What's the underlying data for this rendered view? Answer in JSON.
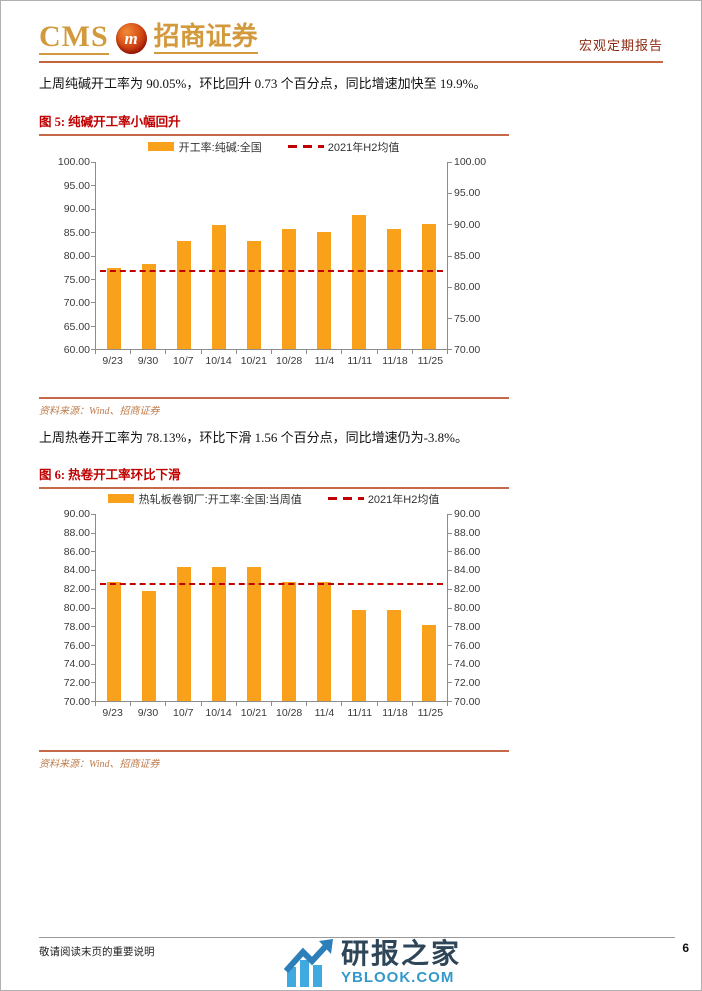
{
  "header": {
    "logo_cms": "CMS",
    "logo_badge_glyph": "m",
    "logo_cn": "招商证券",
    "report_type": "宏观定期报告"
  },
  "paragraphs": [
    "上周纯碱开工率为 90.05%，环比回升 0.73 个百分点，同比增速加快至 19.9%。",
    "上周热卷开工率为 78.13%，环比下滑 1.56 个百分点，同比增速仍为-3.8%。"
  ],
  "figures": [
    {
      "title": "图 5: 纯碱开工率小幅回升",
      "source": "资料来源：Wind、招商证券"
    },
    {
      "title": "图 6: 热卷开工率环比下滑",
      "source": "资料来源：Wind、招商证券"
    }
  ],
  "chart_data": [
    {
      "type": "bar",
      "title": "纯碱开工率小幅回升",
      "categories": [
        "9/23",
        "9/30",
        "10/7",
        "10/14",
        "10/21",
        "10/28",
        "11/4",
        "11/11",
        "11/18",
        "11/25"
      ],
      "series": [
        {
          "name": "开工率:纯碱:全国",
          "type": "bar",
          "values": [
            83.0,
            83.7,
            87.25,
            89.9,
            87.3,
            89.3,
            88.7,
            91.5,
            89.32,
            90.05
          ]
        },
        {
          "name": "2021年H2均值",
          "type": "dashed-line",
          "value": 82.4
        }
      ],
      "left_axis_ticks": [
        "100.00",
        "95.00",
        "90.00",
        "85.00",
        "80.00",
        "75.00",
        "70.00",
        "65.00",
        "60.00"
      ],
      "right_axis_ticks": [
        "100.00",
        "95.00",
        "90.00",
        "85.00",
        "80.00",
        "75.00",
        "70.00"
      ],
      "left_axis_range": [
        60,
        100
      ],
      "right_axis_range": [
        70,
        100
      ],
      "bars_plotted_on_axis": "right",
      "plot_range": [
        70,
        100
      ],
      "bar_color": "#f9a11b",
      "line_color": "#c00000",
      "grid": false,
      "legend_position": "top"
    },
    {
      "type": "bar",
      "title": "热卷开工率环比下滑",
      "categories": [
        "9/23",
        "9/30",
        "10/7",
        "10/14",
        "10/21",
        "10/28",
        "11/4",
        "11/11",
        "11/18",
        "11/25"
      ],
      "series": [
        {
          "name": "热轧板卷钢厂:开工率:全国:当周值",
          "type": "bar",
          "values": [
            82.75,
            81.8,
            84.35,
            84.35,
            84.35,
            82.75,
            82.75,
            79.69,
            79.69,
            78.13
          ]
        },
        {
          "name": "2021年H2均值",
          "type": "dashed-line",
          "value": 82.4
        }
      ],
      "left_axis_ticks": [
        "90.00",
        "88.00",
        "86.00",
        "84.00",
        "82.00",
        "80.00",
        "78.00",
        "76.00",
        "74.00",
        "72.00",
        "70.00"
      ],
      "right_axis_ticks": [
        "90.00",
        "88.00",
        "86.00",
        "84.00",
        "82.00",
        "80.00",
        "78.00",
        "76.00",
        "74.00",
        "72.00",
        "70.00"
      ],
      "left_axis_range": [
        70,
        90
      ],
      "right_axis_range": [
        70,
        90
      ],
      "bars_plotted_on_axis": "both",
      "plot_range": [
        70,
        90
      ],
      "bar_color": "#f9a11b",
      "line_color": "#c00000",
      "grid": false,
      "legend_position": "top"
    }
  ],
  "footer": {
    "disclaimer": "敬请阅读末页的重要说明",
    "page_number": "6"
  },
  "watermark": {
    "name": "研报之家",
    "site": "YBLOOK.COM"
  },
  "colors": {
    "brand_gold": "#d29a3c",
    "header_rule": "#c3653f",
    "figure_title_red": "#c00000",
    "figure_rule": "#c5694a",
    "bar_orange": "#f9a11b",
    "mean_line_red": "#c00000",
    "source_brown": "#be7b4b",
    "report_type_red": "#8e2a12",
    "watermark_dark_blue": "#2f4558",
    "watermark_light_blue": "#3399cc"
  }
}
